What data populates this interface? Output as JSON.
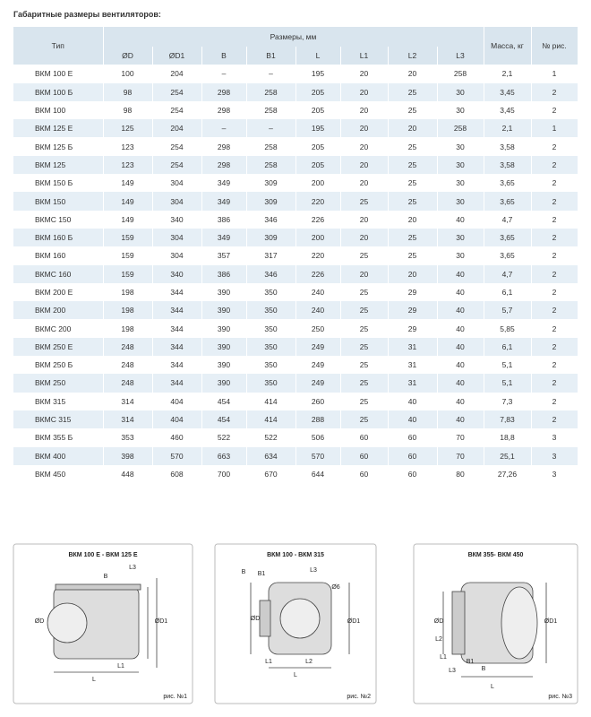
{
  "header": {
    "title": "Габаритные размеры вентиляторов:"
  },
  "table": {
    "head": {
      "type": "Тип",
      "sizes": "Размеры, мм",
      "mass": "Масса, кг",
      "fig": "№ рис."
    },
    "columns": [
      "ØD",
      "ØD1",
      "B",
      "B1",
      "L",
      "L1",
      "L2",
      "L3"
    ],
    "rows": [
      [
        "ВКМ 100 Е",
        "100",
        "204",
        "–",
        "–",
        "195",
        "20",
        "20",
        "258",
        "2,1",
        "1"
      ],
      [
        "ВКМ 100 Б",
        "98",
        "254",
        "298",
        "258",
        "205",
        "20",
        "25",
        "30",
        "3,45",
        "2"
      ],
      [
        "ВКМ 100",
        "98",
        "254",
        "298",
        "258",
        "205",
        "20",
        "25",
        "30",
        "3,45",
        "2"
      ],
      [
        "ВКМ 125 Е",
        "125",
        "204",
        "–",
        "–",
        "195",
        "20",
        "20",
        "258",
        "2,1",
        "1"
      ],
      [
        "ВКМ 125 Б",
        "123",
        "254",
        "298",
        "258",
        "205",
        "20",
        "25",
        "30",
        "3,58",
        "2"
      ],
      [
        "ВКМ 125",
        "123",
        "254",
        "298",
        "258",
        "205",
        "20",
        "25",
        "30",
        "3,58",
        "2"
      ],
      [
        "ВКМ 150 Б",
        "149",
        "304",
        "349",
        "309",
        "200",
        "20",
        "25",
        "30",
        "3,65",
        "2"
      ],
      [
        "ВКМ 150",
        "149",
        "304",
        "349",
        "309",
        "220",
        "25",
        "25",
        "30",
        "3,65",
        "2"
      ],
      [
        "ВКМС 150",
        "149",
        "340",
        "386",
        "346",
        "226",
        "20",
        "20",
        "40",
        "4,7",
        "2"
      ],
      [
        "ВКМ 160 Б",
        "159",
        "304",
        "349",
        "309",
        "200",
        "20",
        "25",
        "30",
        "3,65",
        "2"
      ],
      [
        "ВКМ 160",
        "159",
        "304",
        "357",
        "317",
        "220",
        "25",
        "25",
        "30",
        "3,65",
        "2"
      ],
      [
        "ВКМС 160",
        "159",
        "340",
        "386",
        "346",
        "226",
        "20",
        "20",
        "40",
        "4,7",
        "2"
      ],
      [
        "ВКМ 200 Е",
        "198",
        "344",
        "390",
        "350",
        "240",
        "25",
        "29",
        "40",
        "6,1",
        "2"
      ],
      [
        "ВКМ 200",
        "198",
        "344",
        "390",
        "350",
        "240",
        "25",
        "29",
        "40",
        "5,7",
        "2"
      ],
      [
        "ВКМС 200",
        "198",
        "344",
        "390",
        "350",
        "250",
        "25",
        "29",
        "40",
        "5,85",
        "2"
      ],
      [
        "ВКМ 250 Е",
        "248",
        "344",
        "390",
        "350",
        "249",
        "25",
        "31",
        "40",
        "6,1",
        "2"
      ],
      [
        "ВКМ 250 Б",
        "248",
        "344",
        "390",
        "350",
        "249",
        "25",
        "31",
        "40",
        "5,1",
        "2"
      ],
      [
        "ВКМ 250",
        "248",
        "344",
        "390",
        "350",
        "249",
        "25",
        "31",
        "40",
        "5,1",
        "2"
      ],
      [
        "ВКМ 315",
        "314",
        "404",
        "454",
        "414",
        "260",
        "25",
        "40",
        "40",
        "7,3",
        "2"
      ],
      [
        "ВКМС 315",
        "314",
        "404",
        "454",
        "414",
        "288",
        "25",
        "40",
        "40",
        "7,83",
        "2"
      ],
      [
        "ВКМ 355 Б",
        "353",
        "460",
        "522",
        "522",
        "506",
        "60",
        "60",
        "70",
        "18,8",
        "3"
      ],
      [
        "ВКМ 400",
        "398",
        "570",
        "663",
        "634",
        "570",
        "60",
        "60",
        "70",
        "25,1",
        "3"
      ],
      [
        "ВКМ 450",
        "448",
        "608",
        "700",
        "670",
        "644",
        "60",
        "60",
        "80",
        "27,26",
        "3"
      ]
    ]
  },
  "figures": [
    {
      "title": "ВКМ 100 Е - ВКМ 125 Е",
      "caption": "рис. №1",
      "labels": [
        "L3",
        "B",
        "ØD",
        "ØD1",
        "L",
        "L1"
      ]
    },
    {
      "title": "ВКМ 100 - ВКМ 315",
      "caption": "рис. №2",
      "labels": [
        "L3",
        "B",
        "B1",
        "Ø6",
        "ØD",
        "ØD1",
        "L",
        "L1",
        "L2"
      ]
    },
    {
      "title": "ВКМ 355- ВКМ 450",
      "caption": "рис. №3",
      "labels": [
        "ØD",
        "ØD1",
        "L2",
        "L1",
        "L",
        "B1",
        "B",
        "L3"
      ]
    }
  ]
}
